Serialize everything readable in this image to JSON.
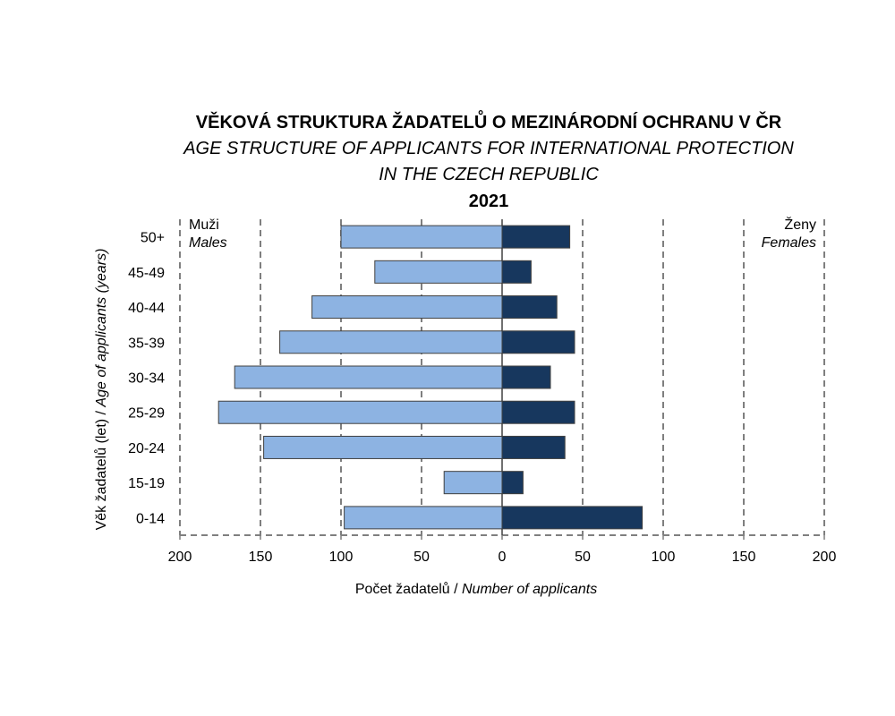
{
  "title": {
    "line1": "VĚKOVÁ STRUKTURA ŽADATELŮ O MEZINÁRODNÍ OCHRANU V ČR",
    "line2": "AGE STRUCTURE OF APPLICANTS FOR INTERNATIONAL PROTECTION",
    "line3": "IN THE CZECH REPUBLIC",
    "line4": "2021"
  },
  "chart_data": {
    "type": "bar",
    "orientation": "horizontal-population-pyramid",
    "categories": [
      "0-14",
      "15-19",
      "20-24",
      "25-29",
      "30-34",
      "35-39",
      "40-44",
      "45-49",
      "50+"
    ],
    "series": [
      {
        "name": "Muži / Males",
        "values": [
          98,
          36,
          148,
          176,
          166,
          138,
          118,
          79,
          100
        ]
      },
      {
        "name": "Ženy / Females",
        "values": [
          87,
          13,
          39,
          45,
          30,
          45,
          34,
          18,
          42
        ]
      }
    ],
    "xlabel_part1": "Počet žadatelů / ",
    "xlabel_part2": "Number of applicants",
    "ylabel_part1": "Věk žadatelů (let) / ",
    "ylabel_part2": "Age of applicants (years)",
    "xlim": [
      -200,
      200
    ],
    "x_ticks": [
      "200",
      "150",
      "100",
      "50",
      "0",
      "50",
      "100",
      "150",
      "200"
    ],
    "males_label": "Muži",
    "males_label_en": "Males",
    "females_label": "Ženy",
    "females_label_en": "Females",
    "grid": "vertical dashed",
    "colors": {
      "males": "#8db3e2",
      "females": "#17375e",
      "bar_border": "#404040",
      "grid": "#7f7f7f"
    }
  }
}
